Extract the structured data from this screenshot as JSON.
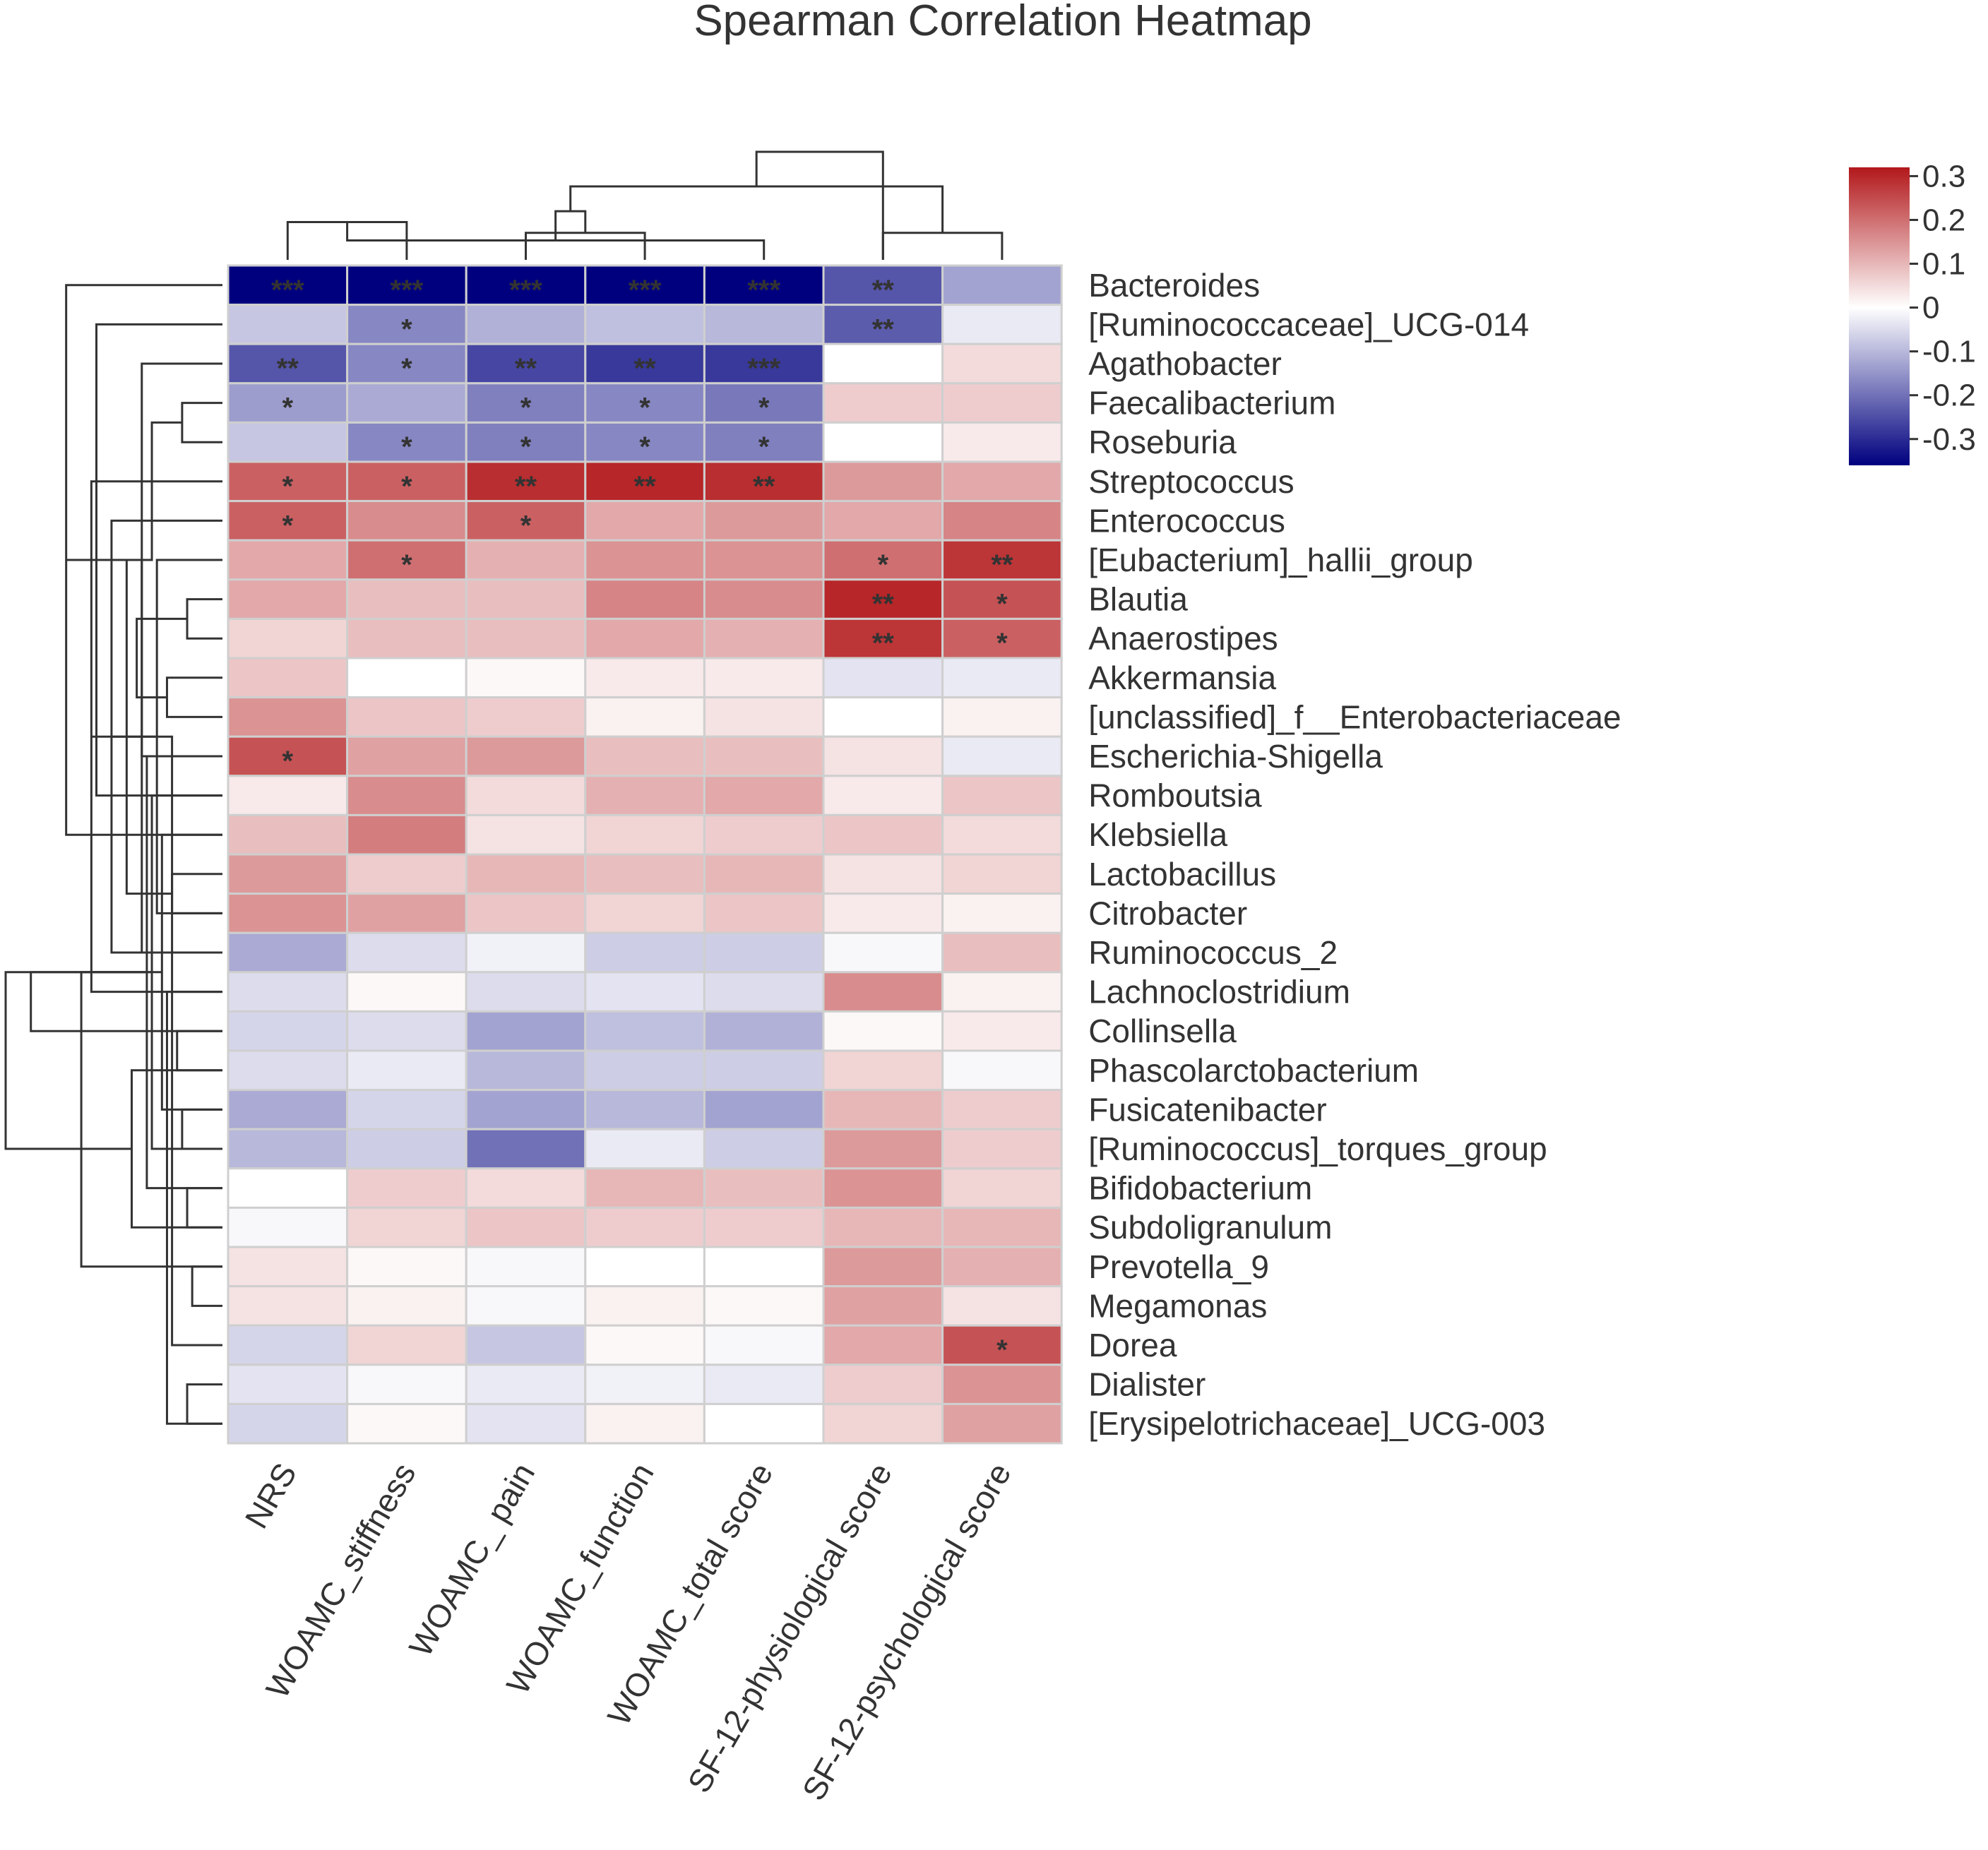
{
  "chart_data": {
    "type": "heatmap",
    "title": "Spearman Correlation Heatmap",
    "columns": [
      "NRS",
      "WOAMC_stiffness",
      "WOAMC_ pain",
      "WOAMC_function",
      "WOAMC_total score",
      "SF-12-physiological score",
      "SF-12-psychological score"
    ],
    "rows": [
      "Bacteroides",
      "[Ruminococcaceae]_UCG-014",
      "Agathobacter",
      "Faecalibacterium",
      "Roseburia",
      "Streptococcus",
      "Enterococcus",
      "[Eubacterium]_hallii_group",
      "Blautia",
      "Anaerostipes",
      "Akkermansia",
      "[unclassified]_f__Enterobacteriaceae",
      "Escherichia-Shigella",
      "Romboutsia",
      "Klebsiella",
      "Lactobacillus",
      "Citrobacter",
      "Ruminococcus_2",
      "Lachnoclostridium",
      "Collinsella",
      "Phascolarctobacterium",
      "Fusicatenibacter",
      "[Ruminococcus]_torques_group",
      "Bifidobacterium",
      "Subdoligranulum",
      "Prevotella_9",
      "Megamonas",
      "Dorea",
      "Dialister",
      "[Erysipelotrichaceae]_UCG-003"
    ],
    "values": [
      [
        -0.36,
        -0.36,
        -0.36,
        -0.36,
        -0.36,
        -0.24,
        -0.13
      ],
      [
        -0.08,
        -0.17,
        -0.11,
        -0.09,
        -0.1,
        -0.23,
        -0.03
      ],
      [
        -0.24,
        -0.17,
        -0.26,
        -0.28,
        -0.28,
        0.0,
        0.05
      ],
      [
        -0.14,
        -0.12,
        -0.18,
        -0.17,
        -0.19,
        0.07,
        0.07
      ],
      [
        -0.08,
        -0.17,
        -0.18,
        -0.17,
        -0.18,
        0.0,
        0.03
      ],
      [
        0.22,
        0.22,
        0.29,
        0.3,
        0.29,
        0.14,
        0.12
      ],
      [
        0.22,
        0.16,
        0.22,
        0.12,
        0.14,
        0.12,
        0.17
      ],
      [
        0.12,
        0.2,
        0.11,
        0.15,
        0.15,
        0.2,
        0.28
      ],
      [
        0.12,
        0.09,
        0.09,
        0.17,
        0.16,
        0.3,
        0.24
      ],
      [
        0.06,
        0.09,
        0.09,
        0.12,
        0.11,
        0.28,
        0.22
      ],
      [
        0.08,
        0.0,
        0.01,
        0.03,
        0.03,
        -0.04,
        -0.03
      ],
      [
        0.15,
        0.08,
        0.07,
        0.02,
        0.04,
        0.0,
        0.02
      ],
      [
        0.24,
        0.13,
        0.14,
        0.09,
        0.09,
        0.04,
        -0.03
      ],
      [
        0.03,
        0.16,
        0.05,
        0.11,
        0.12,
        0.03,
        0.08
      ],
      [
        0.09,
        0.18,
        0.04,
        0.06,
        0.07,
        0.08,
        0.05
      ],
      [
        0.14,
        0.07,
        0.1,
        0.09,
        0.1,
        0.04,
        0.06
      ],
      [
        0.15,
        0.13,
        0.08,
        0.06,
        0.08,
        0.03,
        0.02
      ],
      [
        -0.12,
        -0.05,
        -0.02,
        -0.07,
        -0.07,
        -0.01,
        0.09
      ],
      [
        -0.05,
        0.01,
        -0.05,
        -0.04,
        -0.05,
        0.16,
        0.02
      ],
      [
        -0.06,
        -0.05,
        -0.13,
        -0.09,
        -0.11,
        0.01,
        0.03
      ],
      [
        -0.05,
        -0.03,
        -0.1,
        -0.07,
        -0.07,
        0.06,
        -0.01
      ],
      [
        -0.12,
        -0.06,
        -0.13,
        -0.1,
        -0.13,
        0.1,
        0.07
      ],
      [
        -0.1,
        -0.07,
        -0.2,
        -0.03,
        -0.07,
        0.14,
        0.07
      ],
      [
        0.0,
        0.07,
        0.05,
        0.1,
        0.09,
        0.15,
        0.06
      ],
      [
        -0.01,
        0.06,
        0.08,
        0.07,
        0.07,
        0.1,
        0.1
      ],
      [
        0.04,
        0.01,
        -0.01,
        0.0,
        0.0,
        0.14,
        0.11
      ],
      [
        0.04,
        0.02,
        -0.01,
        0.02,
        0.01,
        0.13,
        0.04
      ],
      [
        -0.06,
        0.06,
        -0.08,
        0.01,
        -0.01,
        0.12,
        0.24
      ],
      [
        -0.04,
        -0.01,
        -0.03,
        -0.02,
        -0.03,
        0.07,
        0.15
      ],
      [
        -0.06,
        0.01,
        -0.04,
        0.02,
        0.0,
        0.06,
        0.13
      ]
    ],
    "significance": [
      [
        "***",
        "***",
        "***",
        "***",
        "***",
        "**",
        ""
      ],
      [
        "",
        "*",
        "",
        "",
        "",
        "**",
        ""
      ],
      [
        "**",
        "*",
        "**",
        "**",
        "***",
        "",
        ""
      ],
      [
        "*",
        "",
        "*",
        "*",
        "*",
        "",
        ""
      ],
      [
        "",
        "*",
        "*",
        "*",
        "*",
        "",
        ""
      ],
      [
        "*",
        "*",
        "**",
        "**",
        "**",
        "",
        ""
      ],
      [
        "*",
        "",
        "*",
        "",
        "",
        "",
        ""
      ],
      [
        "",
        "*",
        "",
        "",
        "",
        "*",
        "**"
      ],
      [
        "",
        "",
        "",
        "",
        "",
        "**",
        "*"
      ],
      [
        "",
        "",
        "",
        "",
        "",
        "**",
        "*"
      ],
      [
        "",
        "",
        "",
        "",
        "",
        "",
        ""
      ],
      [
        "",
        "",
        "",
        "",
        "",
        "",
        ""
      ],
      [
        "*",
        "",
        "",
        "",
        "",
        "",
        ""
      ],
      [
        "",
        "",
        "",
        "",
        "",
        "",
        ""
      ],
      [
        "",
        "",
        "",
        "",
        "",
        "",
        ""
      ],
      [
        "",
        "",
        "",
        "",
        "",
        "",
        ""
      ],
      [
        "",
        "",
        "",
        "",
        "",
        "",
        ""
      ],
      [
        "",
        "",
        "",
        "",
        "",
        "",
        ""
      ],
      [
        "",
        "",
        "",
        "",
        "",
        "",
        ""
      ],
      [
        "",
        "",
        "",
        "",
        "",
        "",
        ""
      ],
      [
        "",
        "",
        "",
        "",
        "",
        "",
        ""
      ],
      [
        "",
        "",
        "",
        "",
        "",
        "",
        ""
      ],
      [
        "",
        "",
        "",
        "",
        "",
        "",
        ""
      ],
      [
        "",
        "",
        "",
        "",
        "",
        "",
        ""
      ],
      [
        "",
        "",
        "",
        "",
        "",
        "",
        ""
      ],
      [
        "",
        "",
        "",
        "",
        "",
        "",
        ""
      ],
      [
        "",
        "",
        "",
        "",
        "",
        "",
        ""
      ],
      [
        "",
        "",
        "",
        "",
        "",
        "",
        "*"
      ],
      [
        "",
        "",
        "",
        "",
        "",
        "",
        ""
      ],
      [
        "",
        "",
        "",
        "",
        "",
        "",
        ""
      ]
    ],
    "color_scale": {
      "min": -0.36,
      "max": 0.32,
      "low_color": "#00007f",
      "mid_color": "#ffffff",
      "high_color": "#b2181b",
      "ticks": [
        {
          "value": 0.3,
          "label": "0.3"
        },
        {
          "value": 0.2,
          "label": "0.2"
        },
        {
          "value": 0.1,
          "label": "0.1"
        },
        {
          "value": 0,
          "label": "0"
        },
        {
          "value": -0.1,
          "label": "-0.1"
        },
        {
          "value": -0.2,
          "label": "-0.2"
        },
        {
          "value": -0.3,
          "label": "-0.3"
        }
      ]
    },
    "column_dendrogram": [
      [
        0,
        1,
        0.35
      ],
      [
        2,
        3,
        0.25
      ],
      [
        4,
        7,
        0.18
      ],
      [
        5,
        6,
        0.25
      ],
      [
        8,
        9,
        0.45
      ],
      [
        10,
        11,
        0.68
      ],
      [
        5,
        12,
        1.0
      ]
    ],
    "row_dendrogram": [
      [
        3,
        4,
        0.08
      ],
      [
        2,
        12,
        0.16
      ],
      [
        1,
        13,
        0.25
      ],
      [
        0,
        14,
        0.31
      ],
      [
        8,
        9,
        0.07
      ],
      [
        7,
        16,
        0.13
      ],
      [
        6,
        17,
        0.22
      ],
      [
        5,
        18,
        0.26
      ],
      [
        10,
        11,
        0.11
      ],
      [
        15,
        16,
        0.1
      ],
      [
        14,
        21,
        0.12
      ],
      [
        13,
        22,
        0.14
      ],
      [
        12,
        23,
        0.15
      ],
      [
        20,
        24,
        0.18
      ],
      [
        19,
        20,
        0.09
      ],
      [
        21,
        22,
        0.08
      ],
      [
        18,
        29,
        0.11
      ],
      [
        30,
        31,
        0.14
      ],
      [
        17,
        32,
        0.16
      ],
      [
        23,
        24,
        0.07
      ],
      [
        25,
        26,
        0.06
      ],
      [
        28,
        29,
        0.07
      ],
      [
        27,
        36,
        0.1
      ],
      [
        35,
        37,
        0.14
      ],
      [
        34,
        38,
        0.17
      ],
      [
        33,
        39,
        0.19
      ],
      [
        25,
        40,
        0.28
      ],
      [
        19,
        41,
        0.38
      ],
      [
        42,
        43,
        0.43
      ]
    ]
  }
}
